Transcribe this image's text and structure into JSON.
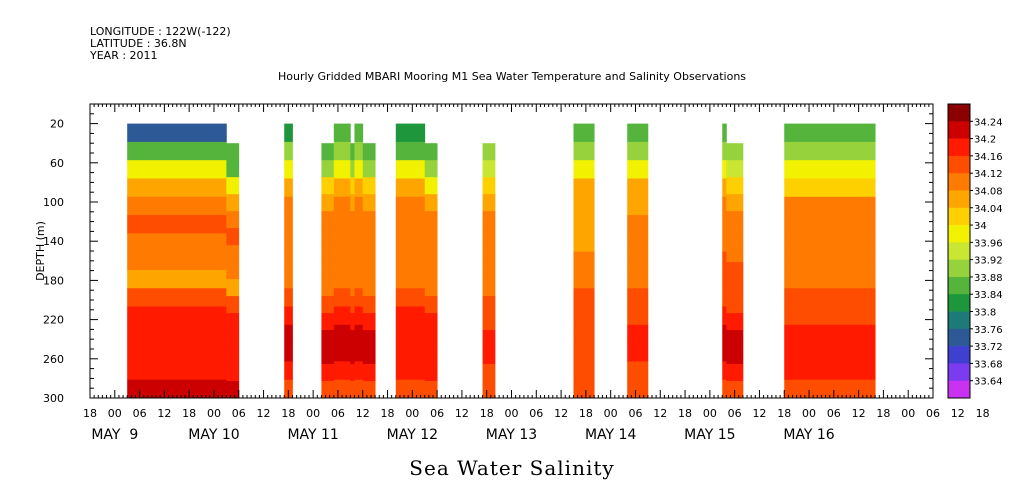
{
  "header": {
    "longitude": "LONGITUDE : 122W(-122)",
    "latitude": "LATITUDE : 36.8N",
    "year": "YEAR : 2011"
  },
  "chart_data": {
    "type": "heatmap",
    "title": "Hourly Gridded MBARI Mooring M1 Sea Water Temperature and Salinity Observations",
    "xlabel": "Sea Water Salinity",
    "ylabel": "DEPTH (m)",
    "y_range": [
      300,
      0
    ],
    "y_ticks": [
      20,
      60,
      100,
      140,
      180,
      220,
      260,
      300
    ],
    "x_range_hours": [
      -6,
      198
    ],
    "x_hour_ticks": [
      "18",
      "00",
      "06",
      "12",
      "18",
      "00",
      "06",
      "12",
      "18",
      "00",
      "06",
      "12",
      "18",
      "00",
      "06",
      "12",
      "18",
      "00",
      "06",
      "12",
      "18",
      "00",
      "06",
      "12",
      "18",
      "00",
      "06",
      "12",
      "18",
      "00",
      "06",
      "12",
      "18",
      "00",
      "06",
      "12",
      "18"
    ],
    "date_labels": [
      "MAY  9",
      "MAY 10",
      "MAY 11",
      "MAY 12",
      "MAY 13",
      "MAY 14",
      "MAY 15",
      "MAY 16"
    ],
    "colorbar_levels": [
      "34.24",
      "34.2",
      "34.16",
      "34.12",
      "34.08",
      "34.04",
      "34",
      "33.96",
      "33.92",
      "33.88",
      "33.84",
      "33.8",
      "33.76",
      "33.72",
      "33.68",
      "33.64"
    ],
    "colorbar_colors": [
      "#8b0000",
      "#cc0000",
      "#ff1a00",
      "#ff4d00",
      "#ff7a00",
      "#ffa500",
      "#ffd000",
      "#f2f200",
      "#c8e632",
      "#96d23c",
      "#55b43c",
      "#1e963c",
      "#1e7a78",
      "#2d5a96",
      "#4040d0",
      "#7b3cf0",
      "#c832f0"
    ],
    "observation_blocks": [
      {
        "start": 3,
        "end": 27,
        "top": 20,
        "profile": [
          33.75,
          33.86,
          33.98,
          34.06,
          34.1,
          34.12,
          34.08,
          34.1,
          34.06,
          34.12,
          34.16,
          34.18,
          34.18,
          34.18,
          34.2
        ]
      },
      {
        "start": 27,
        "end": 30,
        "top": 40,
        "profile": [
          33.84,
          33.86,
          33.98,
          34.06,
          34.1,
          34.12,
          34.08,
          34.1,
          34.06,
          34.12,
          34.16,
          34.18,
          34.18,
          34.18,
          34.2
        ]
      },
      {
        "start": 41,
        "end": 43,
        "top": 20,
        "profile": [
          33.82,
          33.88,
          33.98,
          34.04,
          34.08,
          34.1,
          34.08,
          34.1,
          34.1,
          34.14,
          34.18,
          34.2,
          34.2,
          34.16,
          34.14
        ]
      },
      {
        "start": 50,
        "end": 53,
        "top": 40,
        "profile": [
          33.86,
          33.9,
          34.0,
          34.05,
          34.08,
          34.1,
          34.08,
          34.1,
          34.1,
          34.14,
          34.18,
          34.2,
          34.2,
          34.16,
          34.14
        ]
      },
      {
        "start": 53,
        "end": 57,
        "top": 20,
        "profile": [
          33.84,
          33.88,
          33.98,
          34.05,
          34.08,
          34.1,
          34.08,
          34.1,
          34.1,
          34.14,
          34.18,
          34.2,
          34.2,
          34.16,
          34.14
        ]
      },
      {
        "start": 57,
        "end": 58,
        "top": 40,
        "profile": [
          33.86,
          33.9,
          34.0,
          34.05,
          34.08,
          34.1,
          34.08,
          34.1,
          34.1,
          34.14,
          34.18,
          34.2,
          34.2,
          34.16,
          34.14
        ]
      },
      {
        "start": 58,
        "end": 60,
        "top": 20,
        "profile": [
          33.84,
          33.88,
          33.98,
          34.05,
          34.08,
          34.1,
          34.08,
          34.1,
          34.1,
          34.14,
          34.18,
          34.2,
          34.2,
          34.16,
          34.14
        ]
      },
      {
        "start": 60,
        "end": 63,
        "top": 40,
        "profile": [
          33.86,
          33.9,
          34.0,
          34.05,
          34.08,
          34.1,
          34.08,
          34.1,
          34.1,
          34.14,
          34.18,
          34.2,
          34.2,
          34.16,
          34.14
        ]
      },
      {
        "start": 68,
        "end": 75,
        "top": 20,
        "profile": [
          33.8,
          33.86,
          33.96,
          34.04,
          34.08,
          34.1,
          34.08,
          34.1,
          34.1,
          34.12,
          34.16,
          34.18,
          34.18,
          34.16,
          34.14
        ]
      },
      {
        "start": 75,
        "end": 78,
        "top": 40,
        "profile": [
          33.86,
          33.9,
          33.98,
          34.04,
          34.08,
          34.1,
          34.08,
          34.1,
          34.1,
          34.12,
          34.16,
          34.18,
          34.18,
          34.16,
          34.14
        ]
      },
      {
        "start": 89,
        "end": 92,
        "top": 40,
        "profile": [
          33.9,
          33.92,
          34.0,
          34.05,
          34.08,
          34.1,
          34.08,
          34.1,
          34.1,
          34.12,
          34.14,
          34.16,
          34.16,
          34.14,
          34.12
        ]
      },
      {
        "start": 111,
        "end": 116,
        "top": 20,
        "profile": [
          33.86,
          33.9,
          33.98,
          34.04,
          34.06,
          34.06,
          34.06,
          34.08,
          34.1,
          34.12,
          34.12,
          34.14,
          34.14,
          34.12,
          34.12
        ]
      },
      {
        "start": 124,
        "end": 129,
        "top": 20,
        "profile": [
          33.86,
          33.9,
          33.98,
          34.04,
          34.06,
          34.08,
          34.08,
          34.1,
          34.1,
          34.12,
          34.14,
          34.16,
          34.16,
          34.14,
          34.12
        ]
      },
      {
        "start": 147,
        "end": 148,
        "top": 20,
        "profile": [
          33.86,
          33.9,
          33.98,
          34.04,
          34.08,
          34.1,
          34.1,
          34.12,
          34.12,
          34.14,
          34.16,
          34.2,
          34.2,
          34.16,
          34.14
        ]
      },
      {
        "start": 148,
        "end": 152,
        "top": 40,
        "profile": [
          33.88,
          33.92,
          34.0,
          34.04,
          34.08,
          34.1,
          34.1,
          34.12,
          34.12,
          34.14,
          34.16,
          34.2,
          34.22,
          34.16,
          34.14
        ]
      },
      {
        "start": 162,
        "end": 184,
        "top": 20,
        "profile": [
          33.86,
          33.88,
          33.96,
          34.02,
          34.08,
          34.1,
          34.1,
          34.1,
          34.1,
          34.12,
          34.14,
          34.16,
          34.18,
          34.16,
          34.14
        ]
      }
    ]
  }
}
